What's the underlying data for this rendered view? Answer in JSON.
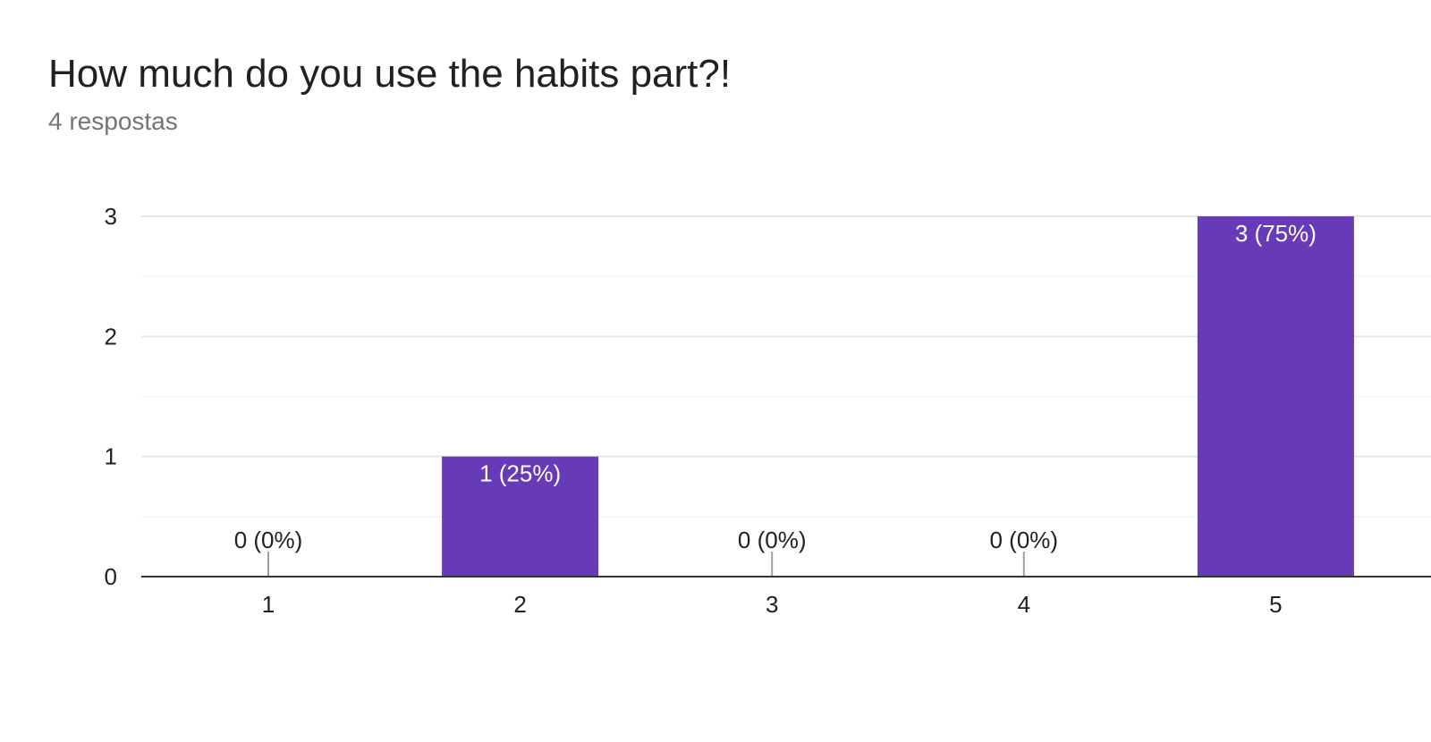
{
  "header": {
    "question": "How much do you use the habits part?!",
    "responses": "4 respostas"
  },
  "chart_data": {
    "type": "bar",
    "categories": [
      "1",
      "2",
      "3",
      "4",
      "5"
    ],
    "values": [
      0,
      1,
      0,
      0,
      3
    ],
    "labels": [
      "0 (0%)",
      "1 (25%)",
      "0 (0%)",
      "0 (0%)",
      "3 (75%)"
    ],
    "title": "How much do you use the habits part?!",
    "subtitle": "4 respostas",
    "xlabel": "",
    "ylabel": "",
    "ylim": [
      0,
      3
    ],
    "yticks": [
      0,
      1,
      2,
      3
    ],
    "grid": true,
    "legend": "none",
    "bar_color": "#673ab7"
  }
}
